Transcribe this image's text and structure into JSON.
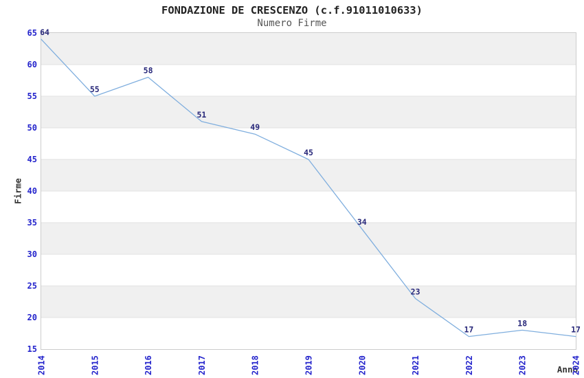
{
  "chart_data": {
    "type": "line",
    "title": "FONDAZIONE DE CRESCENZO (c.f.91011010633)",
    "subtitle": "Numero Firme",
    "xlabel": "Anno",
    "ylabel": "Firme",
    "categories": [
      "2014",
      "2015",
      "2016",
      "2017",
      "2018",
      "2019",
      "2020",
      "2021",
      "2022",
      "2023",
      "2024"
    ],
    "series": [
      {
        "name": "Numero Firme",
        "values": [
          64,
          55,
          58,
          51,
          49,
          45,
          34,
          23,
          17,
          18,
          17
        ]
      }
    ],
    "ylim": [
      15,
      65
    ],
    "ytick_step": 5,
    "yticks": [
      15,
      20,
      25,
      30,
      35,
      40,
      45,
      50,
      55,
      60,
      65
    ],
    "data_labels_visible": true,
    "legend": "none",
    "grid": "horizontal-bands",
    "style": {
      "line_color": "#7faede",
      "tick_label_color": "#2424cc",
      "data_label_color": "#28287a",
      "band_color": "#f0f0f0",
      "gridline_color": "#e2e2e2",
      "border_color": "#cccccc",
      "title_color": "#222222",
      "subtitle_color": "#555555",
      "axis_title_color": "#333333",
      "background_color": "#ffffff"
    }
  }
}
